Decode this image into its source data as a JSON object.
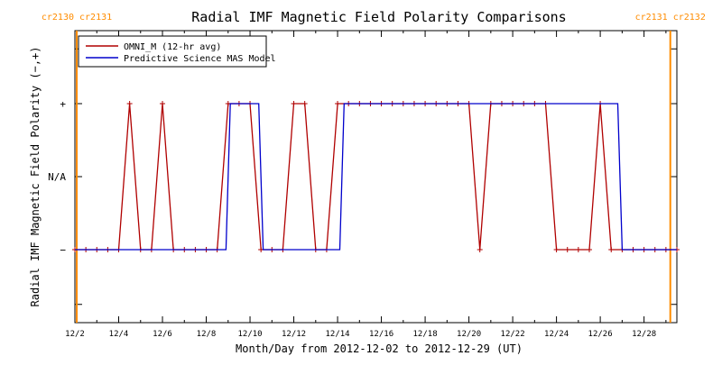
{
  "chart_data": {
    "type": "line",
    "title": "Radial IMF Magnetic Field Polarity Comparisons",
    "xlabel": "Month/Day from 2012-12-02 to 2012-12-29 (UT)",
    "ylabel": "Radial IMF Magnetic Field Polarity (−,+)",
    "xlim": [
      0,
      27.5
    ],
    "ylim": [
      -2,
      2
    ],
    "x_ticks": [
      {
        "x": 0,
        "label": "12/2"
      },
      {
        "x": 2,
        "label": "12/4"
      },
      {
        "x": 4,
        "label": "12/6"
      },
      {
        "x": 6,
        "label": "12/8"
      },
      {
        "x": 8,
        "label": "12/10"
      },
      {
        "x": 10,
        "label": "12/12"
      },
      {
        "x": 12,
        "label": "12/14"
      },
      {
        "x": 14,
        "label": "12/16"
      },
      {
        "x": 16,
        "label": "12/18"
      },
      {
        "x": 18,
        "label": "12/20"
      },
      {
        "x": 20,
        "label": "12/22"
      },
      {
        "x": 22,
        "label": "12/24"
      },
      {
        "x": 24,
        "label": "12/26"
      },
      {
        "x": 26,
        "label": "12/28"
      }
    ],
    "y_ticks": [
      {
        "y": 1,
        "label": "+"
      },
      {
        "y": 0,
        "label": "N/A"
      },
      {
        "y": -1,
        "label": "−"
      }
    ],
    "carrington_markers": [
      {
        "x": 0,
        "labels": [
          "cr2130",
          "cr2131"
        ],
        "side": "left"
      },
      {
        "x": 27.2,
        "labels": [
          "cr2131",
          "cr2132"
        ],
        "side": "right"
      }
    ],
    "marker_color": "#ff8c00",
    "legend_position": "top-left",
    "series": [
      {
        "name": "OMNI_M (12-hr avg)",
        "color": "#b00000",
        "markers": true,
        "points": [
          [
            0,
            -1
          ],
          [
            0.5,
            -1
          ],
          [
            1,
            -1
          ],
          [
            1.5,
            -1
          ],
          [
            2,
            -1
          ],
          [
            2.5,
            1
          ],
          [
            3,
            -1
          ],
          [
            3.5,
            -1
          ],
          [
            4,
            1
          ],
          [
            4.5,
            -1
          ],
          [
            5,
            -1
          ],
          [
            5.5,
            -1
          ],
          [
            6,
            -1
          ],
          [
            6.5,
            -1
          ],
          [
            7,
            1
          ],
          [
            7.5,
            1
          ],
          [
            8,
            1
          ],
          [
            8.5,
            -1
          ],
          [
            9,
            -1
          ],
          [
            9.5,
            -1
          ],
          [
            10,
            1
          ],
          [
            10.5,
            1
          ],
          [
            11,
            -1
          ],
          [
            11.5,
            -1
          ],
          [
            12,
            1
          ],
          [
            12.5,
            1
          ],
          [
            13,
            1
          ],
          [
            13.5,
            1
          ],
          [
            14,
            1
          ],
          [
            14.5,
            1
          ],
          [
            15,
            1
          ],
          [
            15.5,
            1
          ],
          [
            16,
            1
          ],
          [
            16.5,
            1
          ],
          [
            17,
            1
          ],
          [
            17.5,
            1
          ],
          [
            18,
            1
          ],
          [
            18.5,
            -1
          ],
          [
            19,
            1
          ],
          [
            19.5,
            1
          ],
          [
            20,
            1
          ],
          [
            20.5,
            1
          ],
          [
            21,
            1
          ],
          [
            21.5,
            1
          ],
          [
            22,
            -1
          ],
          [
            22.5,
            -1
          ],
          [
            23,
            -1
          ],
          [
            23.5,
            -1
          ],
          [
            24,
            1
          ],
          [
            24.5,
            -1
          ],
          [
            25,
            -1
          ],
          [
            25.5,
            -1
          ],
          [
            26,
            -1
          ],
          [
            26.5,
            -1
          ],
          [
            27,
            -1
          ],
          [
            27.5,
            -1
          ]
        ]
      },
      {
        "name": "Predictive Science MAS Model",
        "color": "#0000cc",
        "markers": false,
        "points": [
          [
            0,
            -1
          ],
          [
            6.9,
            -1
          ],
          [
            7.1,
            1
          ],
          [
            8.4,
            1
          ],
          [
            8.6,
            -1
          ],
          [
            12.1,
            -1
          ],
          [
            12.3,
            1
          ],
          [
            24.8,
            1
          ],
          [
            25,
            -1
          ],
          [
            27.5,
            -1
          ]
        ]
      }
    ]
  }
}
